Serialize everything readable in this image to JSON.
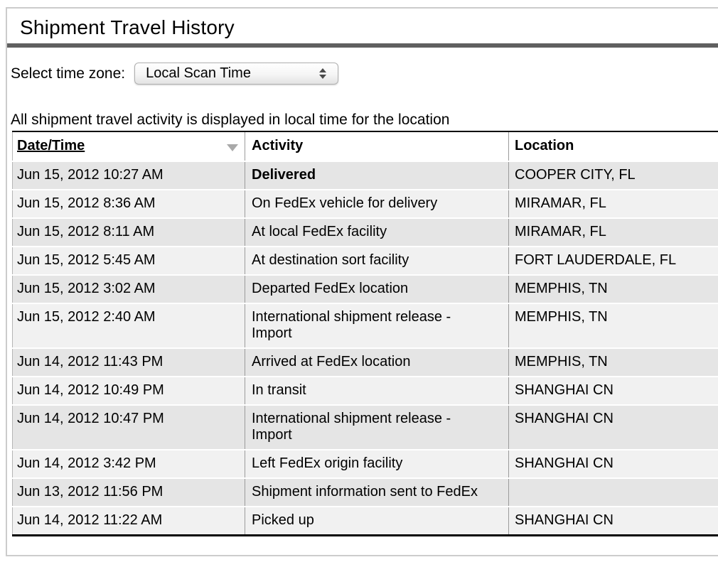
{
  "page": {
    "title": "Shipment Travel History",
    "timezone_label": "Select time zone:",
    "timezone_select": {
      "selected_option": "Local Scan Time",
      "stepper_icon": "up-down-arrows-icon"
    },
    "note": "All shipment travel activity is displayed in local time for the location"
  },
  "table": {
    "columns": [
      {
        "label": "Date/Time",
        "sort_icon": "sort-descending-triangle",
        "sorted": true
      },
      {
        "label": "Activity"
      },
      {
        "label": "Location"
      }
    ],
    "rows": [
      {
        "datetime": "Jun 15, 2012 10:27 AM",
        "activity": "Delivered",
        "location": "COOPER CITY, FL",
        "emphasis": true
      },
      {
        "datetime": "Jun 15, 2012 8:36 AM",
        "activity": "On FedEx vehicle for delivery",
        "location": "MIRAMAR, FL"
      },
      {
        "datetime": "Jun 15, 2012 8:11 AM",
        "activity": "At local FedEx facility",
        "location": "MIRAMAR, FL"
      },
      {
        "datetime": "Jun 15, 2012 5:45 AM",
        "activity": "At destination sort facility",
        "location": "FORT LAUDERDALE, FL"
      },
      {
        "datetime": "Jun 15, 2012 3:02 AM",
        "activity": "Departed FedEx location",
        "location": "MEMPHIS, TN"
      },
      {
        "datetime": "Jun 15, 2012 2:40 AM",
        "activity": "International shipment release -\nImport",
        "location": "MEMPHIS, TN"
      },
      {
        "datetime": "Jun 14, 2012 11:43 PM",
        "activity": "Arrived at FedEx location",
        "location": "MEMPHIS, TN"
      },
      {
        "datetime": "Jun 14, 2012 10:49 PM",
        "activity": "In transit",
        "location": "SHANGHAI CN"
      },
      {
        "datetime": "Jun 14, 2012 10:47 PM",
        "activity": "International shipment release -\nImport",
        "location": "SHANGHAI CN"
      },
      {
        "datetime": "Jun 14, 2012 3:42 PM",
        "activity": "Left FedEx origin facility",
        "location": "SHANGHAI CN"
      },
      {
        "datetime": "Jun 13, 2012 11:56 PM",
        "activity": "Shipment information sent to FedEx",
        "location": ""
      },
      {
        "datetime": "Jun 14, 2012 11:22 AM",
        "activity": "Picked up",
        "location": "SHANGHAI CN"
      }
    ]
  },
  "colors": {
    "page-border": "#cccccc",
    "title-rule": "#606060",
    "table-border": "#000000",
    "column-divider": "#9b9b9b",
    "row-dark": "#e5e5e5",
    "row-light": "#f1f1f1",
    "sort-icon": "#a9a9a9"
  }
}
